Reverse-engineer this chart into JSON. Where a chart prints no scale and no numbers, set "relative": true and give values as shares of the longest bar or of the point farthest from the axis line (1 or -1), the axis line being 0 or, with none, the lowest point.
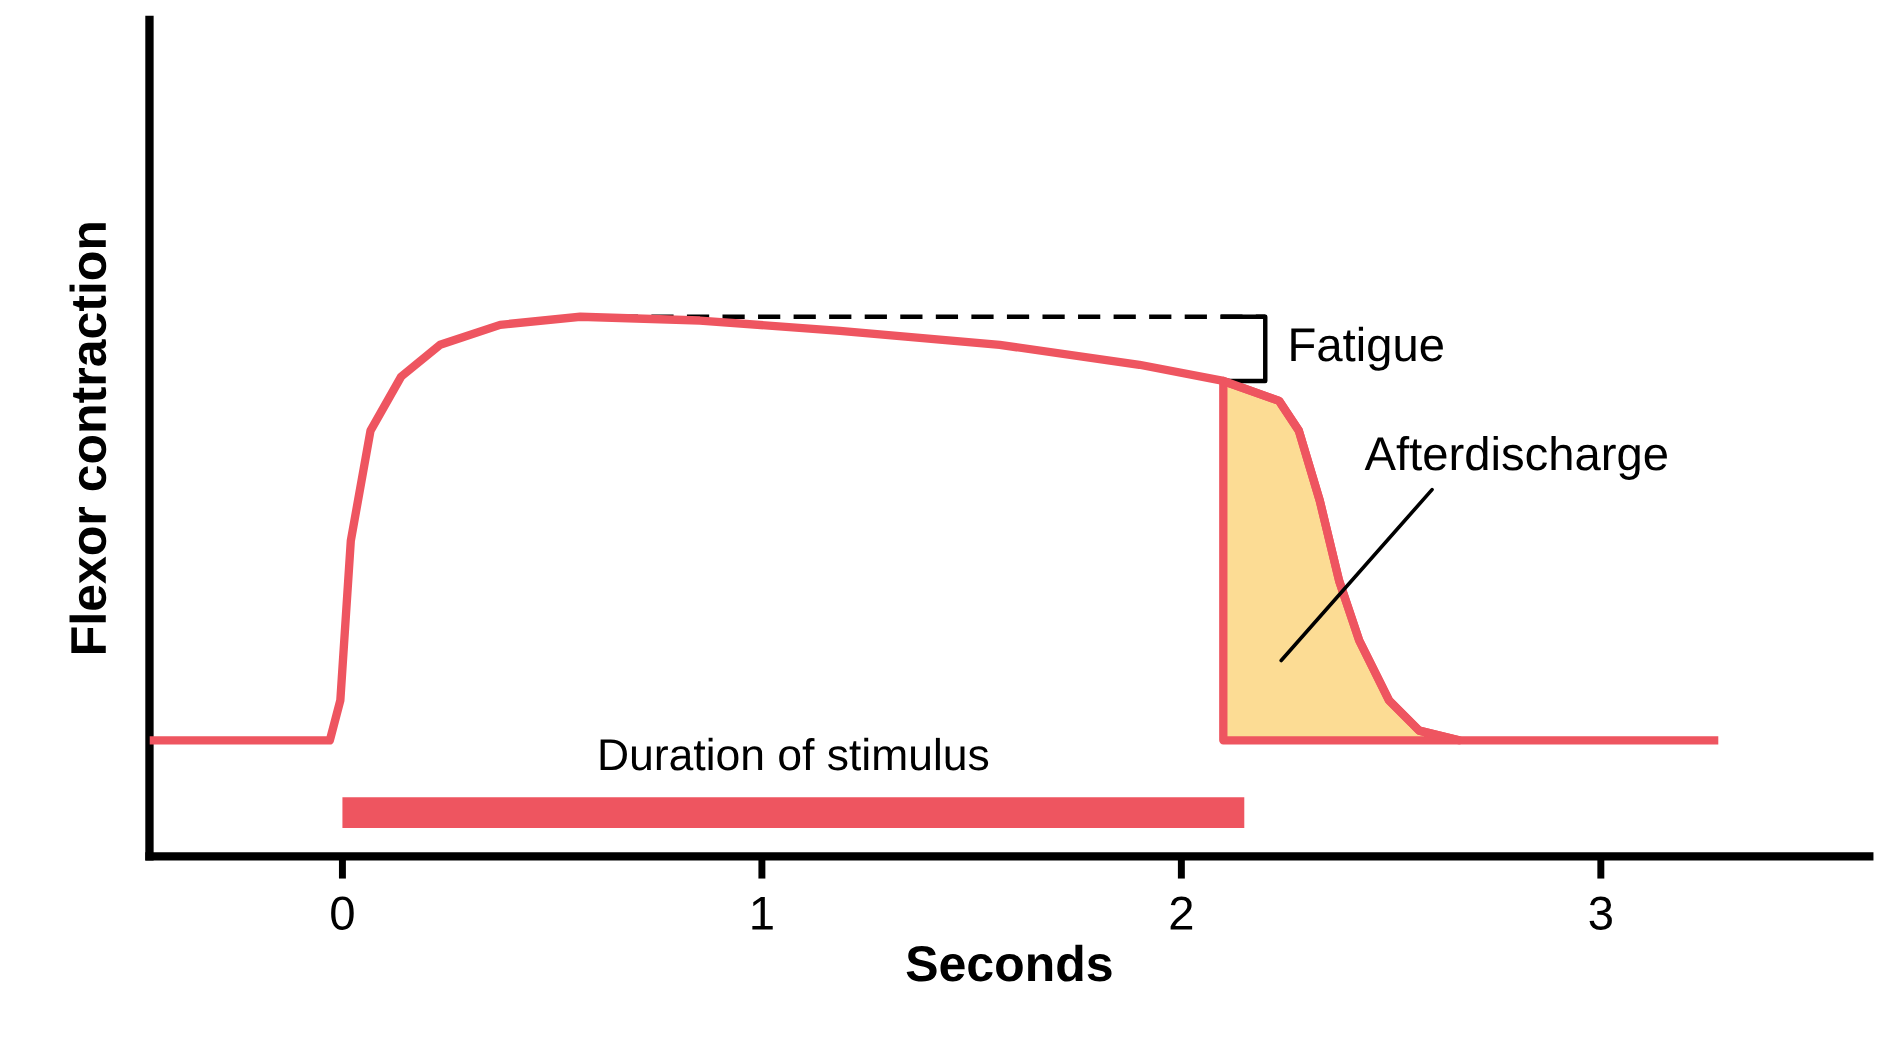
{
  "chart_data": {
    "type": "line",
    "relative": true,
    "xlabel": "Seconds",
    "ylabel": "Flexor contraction",
    "xlim": [
      -0.46,
      3.64
    ],
    "xticks": [
      0,
      1,
      2,
      3
    ],
    "grid": false,
    "marker": "none",
    "line_style": "solid",
    "series": [
      {
        "color": "#ee5560",
        "x": [
          -0.46,
          -0.03,
          -0.005,
          0.02,
          0.067,
          0.14,
          0.233,
          0.376,
          0.567,
          0.852,
          1.186,
          1.567,
          1.9,
          2.1,
          2.233,
          2.28,
          2.33,
          2.376,
          2.424,
          2.495,
          2.567,
          2.662,
          3.28
        ],
        "values": [
          0.215,
          0.215,
          0.289,
          0.585,
          0.789,
          0.889,
          0.948,
          0.985,
          1.0,
          0.993,
          0.974,
          0.948,
          0.911,
          0.881,
          0.844,
          0.789,
          0.659,
          0.511,
          0.4,
          0.289,
          0.233,
          0.215,
          0.215
        ]
      },
      {
        "type": "area",
        "color": "#fcdc94",
        "x": [
          2.1,
          2.233,
          2.28,
          2.33,
          2.376,
          2.424,
          2.495,
          2.567,
          2.662
        ],
        "values": [
          0.881,
          0.844,
          0.789,
          0.659,
          0.511,
          0.4,
          0.289,
          0.233,
          0.215
        ]
      },
      {
        "type": "line",
        "name": "Duration of stimulus",
        "color": "#ee5560",
        "x": [
          0,
          2.15
        ],
        "values": [
          0.081,
          0.081
        ]
      }
    ],
    "annotations": [
      "Fatigue",
      "Afterdischarge"
    ]
  }
}
